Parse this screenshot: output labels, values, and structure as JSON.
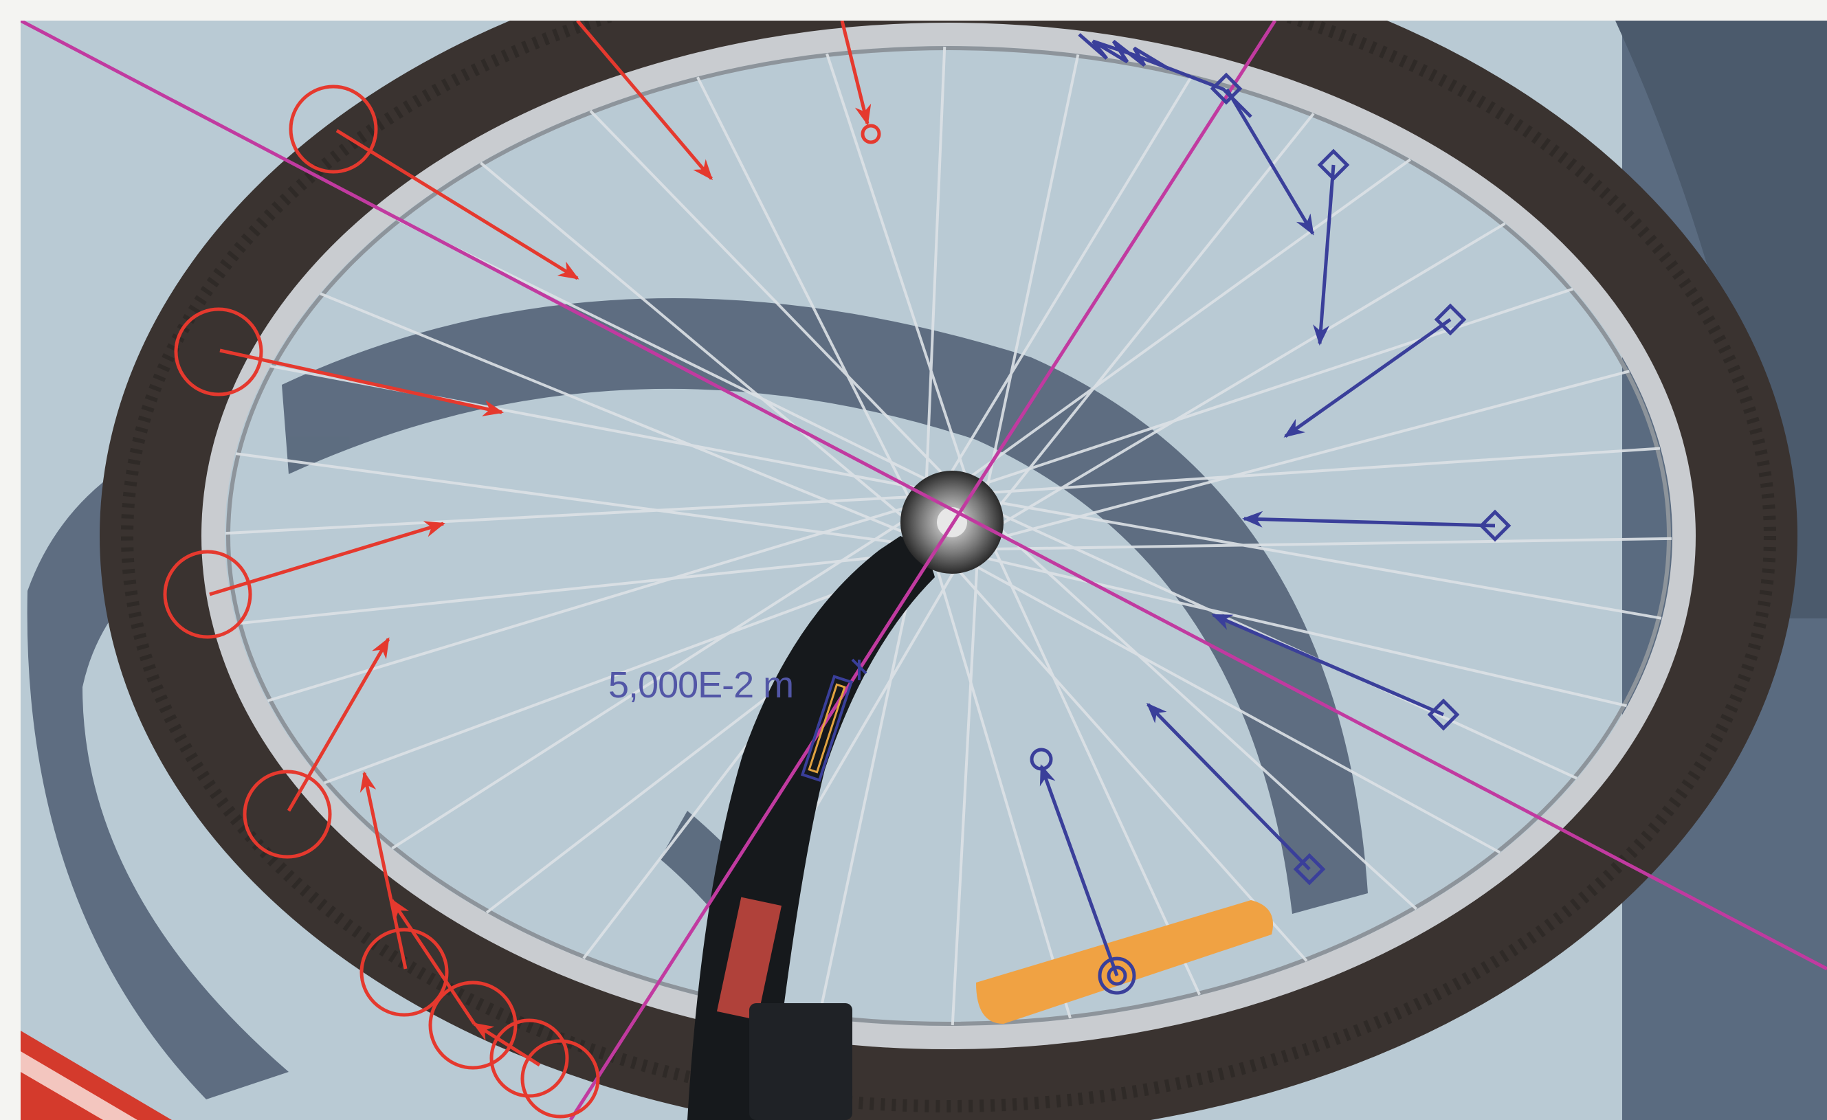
{
  "measurement": {
    "label": "5,000E-2 m",
    "color": "#5256a6"
  },
  "colors": {
    "sky": "#b9cad4",
    "shadow": "#4e5d72",
    "tire": "#3a3330",
    "rim": "#c9ccd0",
    "fork": "#16191c",
    "frame_red": "#d43a2c",
    "reflector": "#f0a243",
    "guide_line": "#c13aa0",
    "red_annotation": "#e5392e",
    "blue_annotation": "#3a3f9a"
  },
  "icons": {
    "red_markers": "circle-marker-icon",
    "blue_markers": "diamond-marker-icon",
    "arrows": "vector-arrow-icon"
  }
}
